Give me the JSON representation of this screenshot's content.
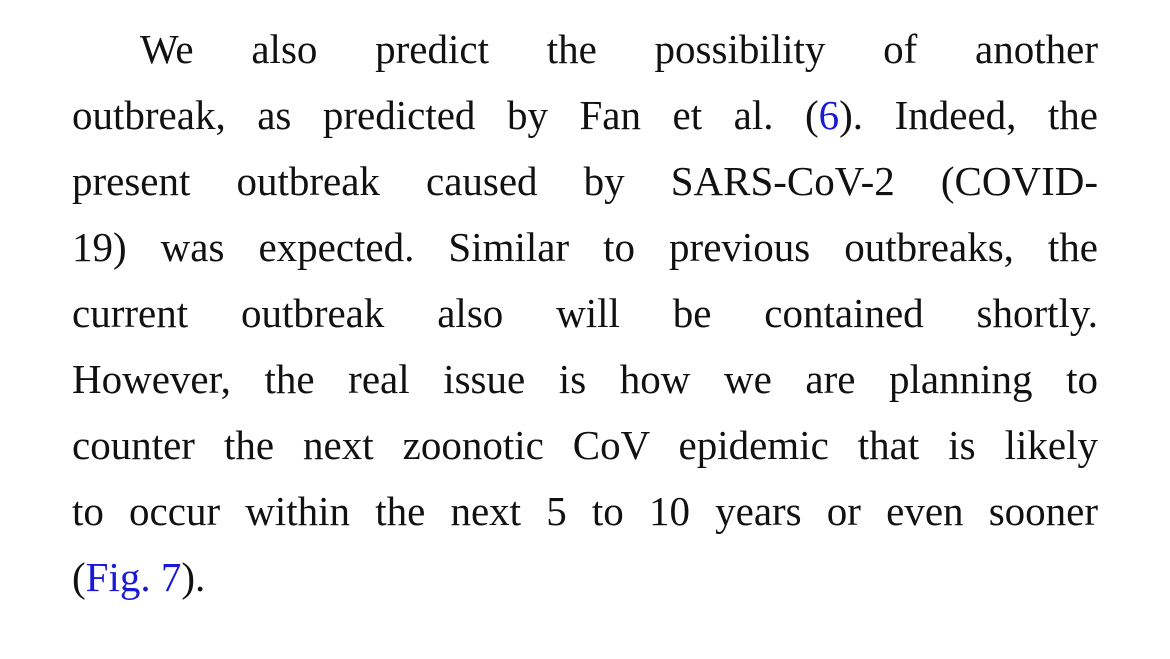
{
  "paragraph": {
    "line1": "We also predict the possibility of another",
    "line2_before": "outbreak, as predicted by Fan et al. (",
    "line2_ref": "6",
    "line2_after": "). Indeed, the",
    "line3": "present outbreak caused by SARS-CoV-2 (COVID-",
    "line4": "19) was expected. Similar to previous outbreaks, the",
    "line5": "current outbreak also will be contained shortly.",
    "line6": "However, the real issue is how we are planning to",
    "line7": "counter the next zoonotic CoV epidemic that is likely",
    "line8": "to occur within the next 5 to 10 years or even sooner",
    "line9_before": "(",
    "line9_link": "Fig. 7",
    "line9_after": ")."
  },
  "colors": {
    "text": "#111111",
    "link": "#1a1ad6",
    "background": "#ffffff"
  }
}
